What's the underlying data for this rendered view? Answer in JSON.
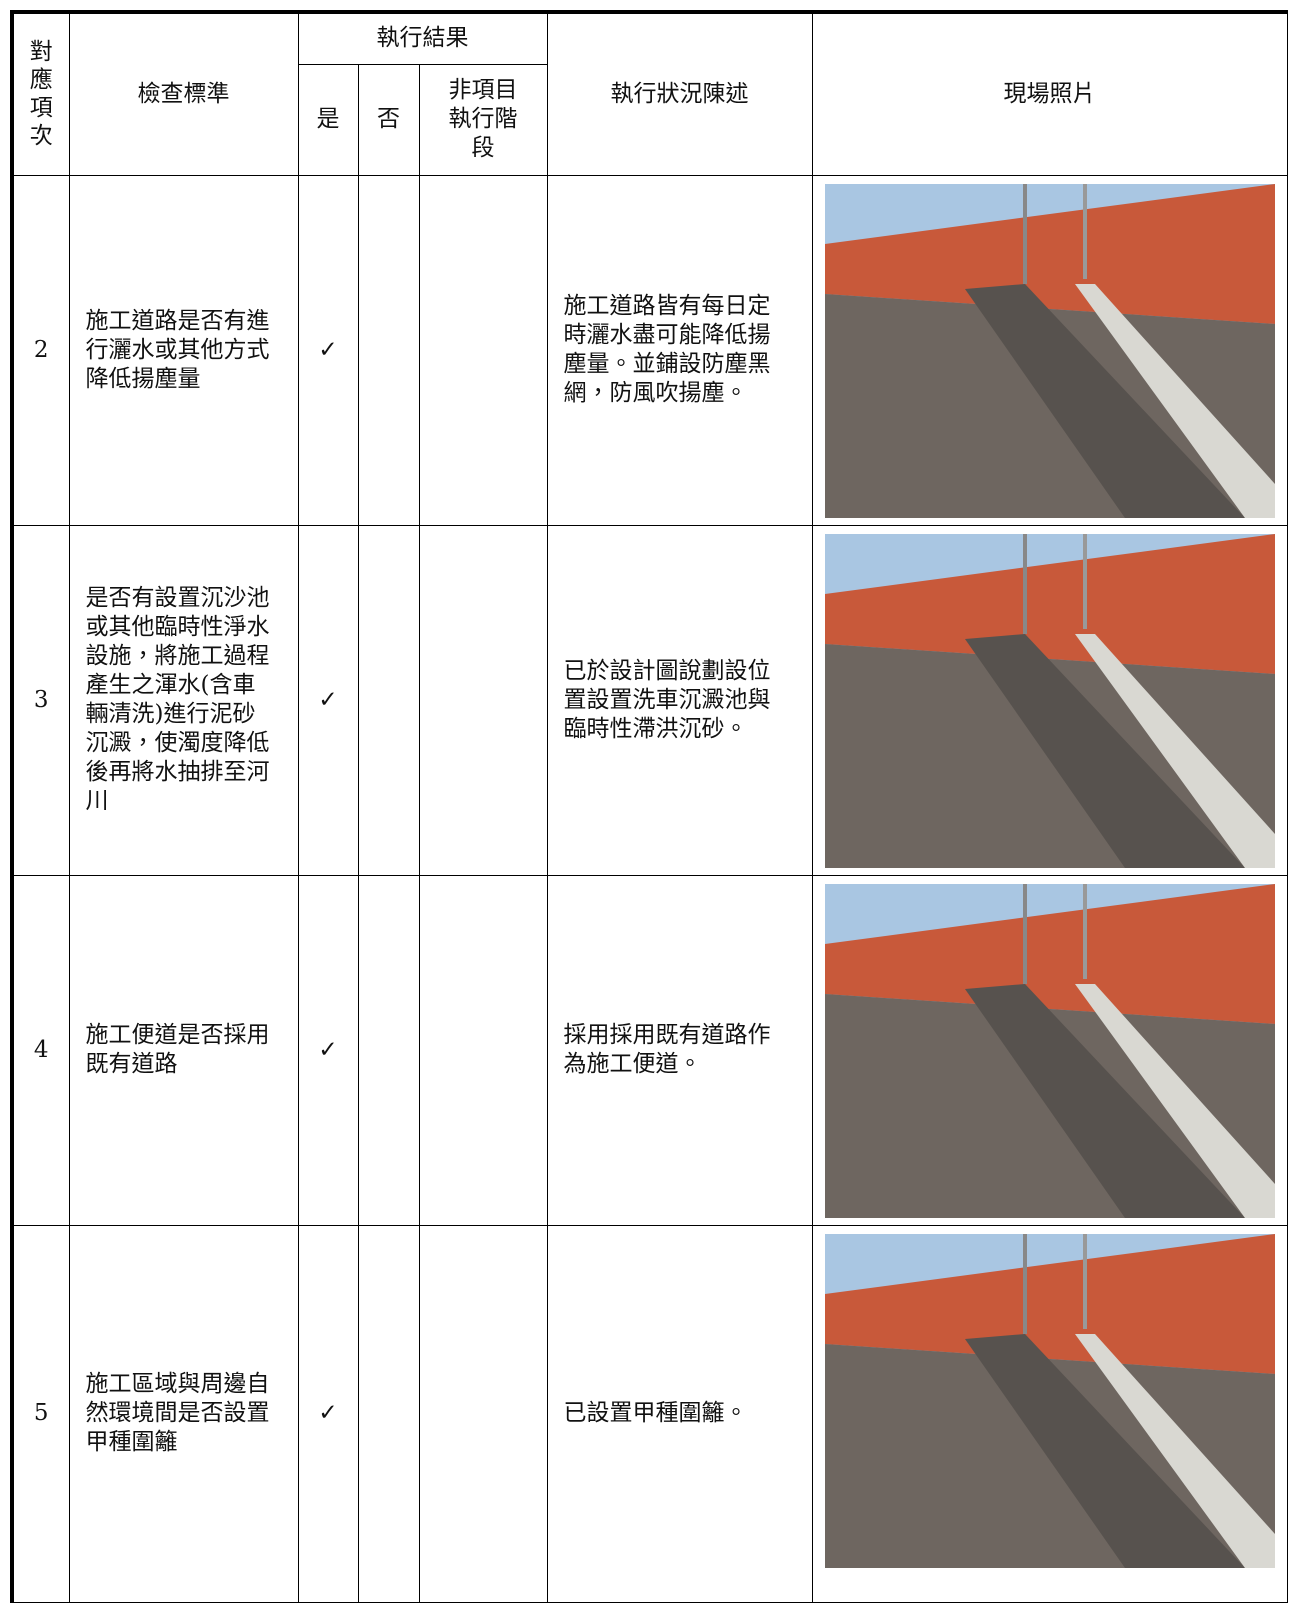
{
  "table": {
    "header": {
      "item": "對應項次",
      "criteria": "檢查標準",
      "result": "執行結果",
      "yes": "是",
      "no": "否",
      "na": "非項目執行階段",
      "status": "執行狀況陳述",
      "photo": "現場照片"
    },
    "rows": [
      {
        "item": 2,
        "criteria": "施工道路是否有進行灑水或其他方式降低揚塵量",
        "yes": "✓",
        "status": "施工道路皆有每日定時灑水盡可能降低揚塵量。並鋪設防塵黑網，防風吹揚塵。"
      },
      {
        "item": 3,
        "criteria": "是否有設置沉沙池或其他臨時性淨水設施，將施工過程產生之渾水(含車輛清洗)進行泥砂沉澱，使濁度降低後再將水抽排至河川",
        "yes": "✓",
        "status": "已於設計圖說劃設位置設置洗車沉澱池與臨時性滯洪沉砂。"
      },
      {
        "item": 4,
        "criteria": "施工便道是否採用既有道路",
        "yes": "✓",
        "status": "採用採用既有道路作為施工便道。"
      },
      {
        "item": 5,
        "criteria": "施工區域與周邊自然環境間是否設置甲種圍籬",
        "yes": "✓",
        "status": "已設置甲種圍籬。"
      }
    ]
  }
}
